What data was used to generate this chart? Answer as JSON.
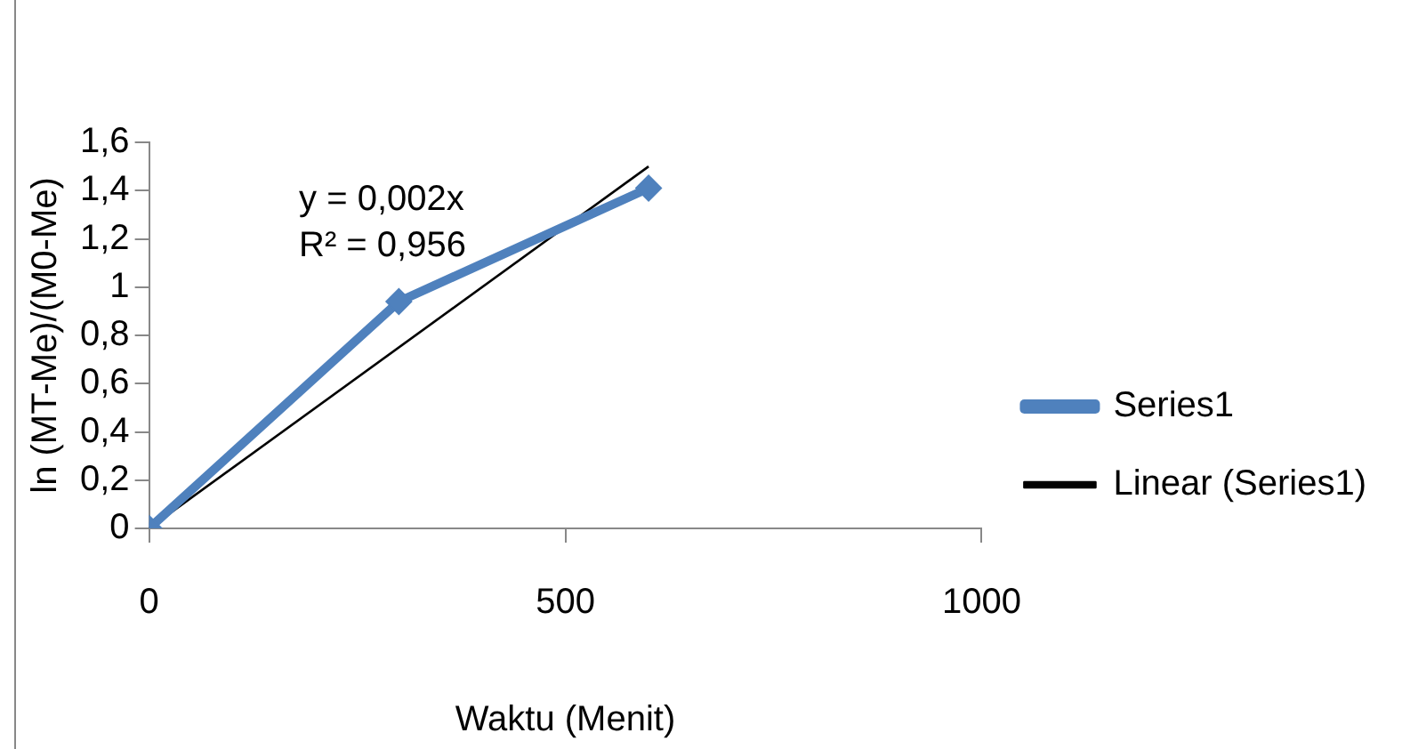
{
  "chart_data": {
    "type": "line",
    "xlabel": "Waktu (Menit)",
    "ylabel": "ln (MT-Me)/(M0-Me)",
    "xlim": [
      0,
      1000
    ],
    "xticks": [
      0,
      500,
      1000
    ],
    "ylim": [
      0,
      1.6
    ],
    "yticks": [
      0,
      {
        "value": 0.2,
        "label": "0,2"
      },
      {
        "value": 0.4,
        "label": "0,4"
      },
      {
        "value": 0.6,
        "label": "0,6"
      },
      {
        "value": 0.8,
        "label": "0,8"
      },
      1,
      {
        "value": 1.2,
        "label": "1,2"
      },
      {
        "value": 1.4,
        "label": "1,4"
      },
      {
        "value": 1.6,
        "label": "1,6"
      }
    ],
    "series": [
      {
        "name": "Series1",
        "type": "line",
        "color": "#4f81bd",
        "x": [
          0,
          300,
          600
        ],
        "values": [
          0,
          0.94,
          1.41
        ],
        "marker": "diamond"
      },
      {
        "name": "Linear (Series1)",
        "type": "line",
        "color": "#000000",
        "x": [
          0,
          600
        ],
        "values": [
          0,
          1.5
        ],
        "marker": "none"
      }
    ],
    "annotations": [
      "y = 0,002x",
      "R² = 0,956"
    ],
    "grid": false,
    "legend": "right"
  }
}
